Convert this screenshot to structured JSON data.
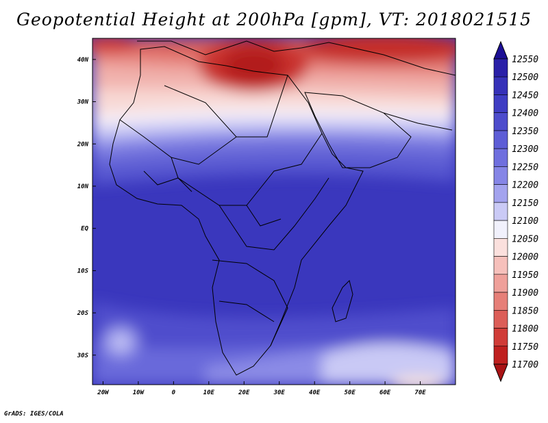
{
  "title": "Geopotential Height at 200hPa [gpm], VT: 2018021515",
  "credit": "GrADS: IGES/COLA",
  "map": {
    "lon_range": [
      -23,
      80
    ],
    "lat_range": [
      -37,
      45
    ],
    "xticks": [
      "20W",
      "10W",
      "0",
      "10E",
      "20E",
      "30E",
      "40E",
      "50E",
      "60E",
      "70E"
    ],
    "yticks": [
      "40N",
      "30N",
      "20N",
      "10N",
      "EQ",
      "10S",
      "20S",
      "30S"
    ]
  },
  "colorbar": {
    "levels": [
      "12550",
      "12500",
      "12450",
      "12400",
      "12350",
      "12300",
      "12250",
      "12200",
      "12150",
      "12100",
      "12050",
      "12000",
      "11950",
      "11900",
      "11850",
      "11800",
      "11750",
      "11700"
    ],
    "colors": [
      "#1c0f95",
      "#2a20a8",
      "#3631b8",
      "#3f3dc3",
      "#4d4ccc",
      "#5d5dd6",
      "#6f6fde",
      "#8585e6",
      "#a3a3ee",
      "#cacaf6",
      "#f1f1fc",
      "#fbe0dd",
      "#f6c0bb",
      "#efa09a",
      "#e67f78",
      "#dc5e58",
      "#d03c38",
      "#bf201f",
      "#a91315"
    ]
  }
}
